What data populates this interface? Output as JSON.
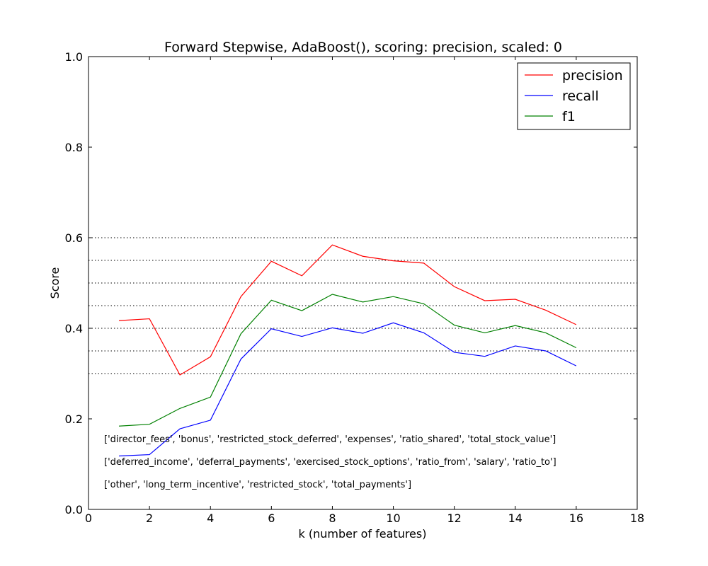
{
  "chart_data": {
    "type": "line",
    "title": "Forward Stepwise, AdaBoost(), scoring: precision, scaled: 0",
    "xlabel": "k (number of features)",
    "ylabel": "Score",
    "xlim": [
      0,
      18
    ],
    "ylim": [
      0.0,
      1.0
    ],
    "xticks": [
      0,
      2,
      4,
      6,
      8,
      10,
      12,
      14,
      16,
      18
    ],
    "yticks": [
      0.0,
      0.2,
      0.4,
      0.6,
      0.8,
      1.0
    ],
    "x": [
      1,
      2,
      3,
      4,
      5,
      6,
      7,
      8,
      9,
      10,
      11,
      12,
      13,
      14,
      15,
      16
    ],
    "series": [
      {
        "name": "precision",
        "color": "#ff0000",
        "values": [
          0.417,
          0.421,
          0.297,
          0.337,
          0.47,
          0.548,
          0.516,
          0.584,
          0.559,
          0.549,
          0.544,
          0.492,
          0.461,
          0.464,
          0.44,
          0.408
        ]
      },
      {
        "name": "recall",
        "color": "#0000ff",
        "values": [
          0.118,
          0.121,
          0.178,
          0.197,
          0.332,
          0.399,
          0.382,
          0.401,
          0.389,
          0.412,
          0.39,
          0.347,
          0.338,
          0.361,
          0.35,
          0.317
        ]
      },
      {
        "name": "f1",
        "color": "#008000",
        "values": [
          0.184,
          0.188,
          0.223,
          0.248,
          0.388,
          0.462,
          0.439,
          0.475,
          0.458,
          0.47,
          0.454,
          0.407,
          0.39,
          0.406,
          0.39,
          0.357
        ]
      }
    ],
    "reference_lines": [
      0.3,
      0.35,
      0.4,
      0.45,
      0.5,
      0.55,
      0.6
    ],
    "legend_position": "top-right",
    "grid": false,
    "annotations": [
      "['director_fees', 'bonus', 'restricted_stock_deferred', 'expenses', 'ratio_shared', 'total_stock_value']",
      "['deferred_income', 'deferral_payments', 'exercised_stock_options', 'ratio_from', 'salary', 'ratio_to']",
      "['other', 'long_term_incentive', 'restricted_stock', 'total_payments']"
    ]
  }
}
